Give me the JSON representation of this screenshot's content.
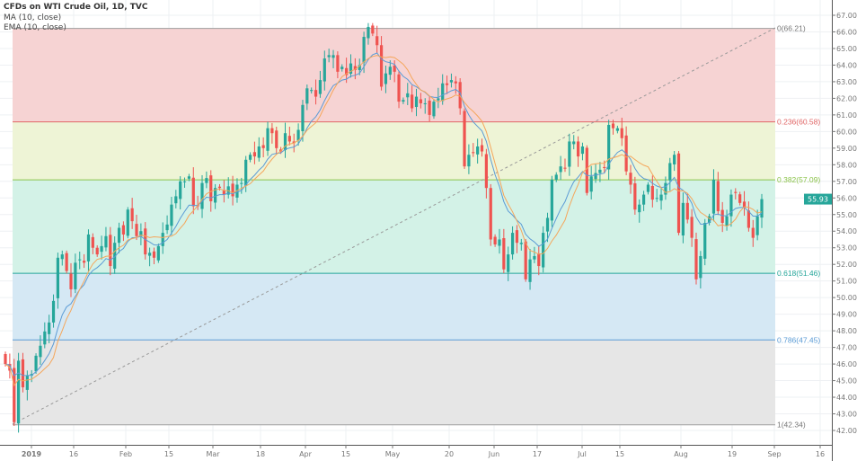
{
  "legend": {
    "title": "CFDs on WTI Crude Oil, 1D, TVC",
    "ma": "MA (10, close)",
    "ema": "EMA (10, close)"
  },
  "price_label": "55.93",
  "colors": {
    "up": "#26a69a",
    "down": "#ef5350",
    "ma": "#f5a65b",
    "ema": "#5b9bd5",
    "price_label_bg": "#26a69a"
  },
  "chart_data": {
    "type": "candlestick",
    "title": "CFDs on WTI Crude Oil, 1D, TVC",
    "ylim": [
      42,
      67
    ],
    "y_ticks": [
      "42.00",
      "43.00",
      "44.00",
      "45.00",
      "46.00",
      "47.00",
      "48.00",
      "49.00",
      "50.00",
      "51.00",
      "52.00",
      "53.00",
      "54.00",
      "55.00",
      "56.00",
      "57.00",
      "58.00",
      "59.00",
      "60.00",
      "61.00",
      "62.00",
      "63.00",
      "64.00",
      "65.00",
      "66.00",
      "67.00"
    ],
    "x_ticks": [
      "2019",
      "16",
      "Feb",
      "15",
      "Mar",
      "18",
      "Apr",
      "15",
      "May",
      "20",
      "Jun",
      "17",
      "Jul",
      "15",
      "Aug",
      "19",
      "Sep",
      "16"
    ],
    "indicators": [
      {
        "name": "MA",
        "period": 10,
        "source": "close"
      },
      {
        "name": "EMA",
        "period": 10,
        "source": "close"
      }
    ],
    "fib_levels": [
      {
        "ratio": 0,
        "price": 66.21,
        "label": "0(66.21)",
        "line": "#9e9e9e",
        "fill": "#f6d3d3"
      },
      {
        "ratio": 0.236,
        "price": 60.58,
        "label": "0.236(60.58)",
        "line": "#e06666",
        "fill": "#eef4d6"
      },
      {
        "ratio": 0.382,
        "price": 57.09,
        "label": "0.382(57.09)",
        "line": "#8bc34a",
        "fill": "#d3f2e7"
      },
      {
        "ratio": 0.618,
        "price": 51.46,
        "label": "0.618(51.46)",
        "line": "#26a69a",
        "fill": "#d5e8f4"
      },
      {
        "ratio": 0.786,
        "price": 47.45,
        "label": "0.786(47.45)",
        "line": "#5b9bd5",
        "fill": "#e6e6e6"
      },
      {
        "ratio": 1,
        "price": 42.34,
        "label": "1(42.34)",
        "line": "#9e9e9e",
        "fill": null
      }
    ],
    "closes": [
      46.0,
      45.6,
      42.5,
      46.2,
      44.6,
      45.3,
      45.4,
      46.5,
      47.1,
      47.96,
      48.5,
      49.8,
      52.4,
      52.6,
      51.6,
      50.5,
      52.1,
      52.3,
      52.1,
      53.8,
      53.0,
      52.6,
      53.1,
      53.7,
      51.9,
      53.3,
      54.2,
      53.8,
      55.3,
      54.6,
      53.7,
      54.0,
      52.6,
      52.7,
      52.4,
      53.1,
      53.9,
      54.4,
      55.6,
      56.1,
      57.0,
      57.0,
      57.3,
      55.5,
      55.5,
      56.9,
      57.2,
      55.8,
      56.6,
      56.6,
      56.2,
      56.7,
      56.1,
      56.8,
      56.9,
      58.3,
      58.6,
      58.5,
      59.1,
      59.0,
      60.2,
      59.9,
      59.0,
      58.8,
      59.9,
      59.4,
      59.3,
      60.1,
      61.6,
      62.6,
      62.5,
      62.1,
      63.1,
      64.4,
      64.6,
      64.6,
      63.6,
      63.9,
      63.4,
      64.1,
      63.7,
      64.0,
      65.7,
      66.3,
      65.9,
      65.2,
      62.7,
      63.5,
      63.9,
      63.6,
      61.8,
      61.9,
      62.3,
      61.4,
      62.1,
      61.7,
      61.7,
      61.0,
      61.8,
      62.0,
      62.9,
      62.8,
      63.1,
      62.9,
      61.4,
      57.9,
      58.6,
      58.7,
      59.1,
      58.8,
      56.6,
      53.5,
      53.2,
      53.5,
      51.7,
      52.6,
      53.9,
      53.3,
      53.3,
      51.1,
      52.3,
      52.5,
      51.9,
      53.9,
      54.8,
      57.1,
      57.4,
      57.9,
      57.8,
      59.4,
      59.4,
      58.5,
      59.1,
      56.3,
      57.3,
      57.5,
      57.7,
      57.8,
      60.4,
      60.2,
      60.2,
      59.6,
      57.6,
      56.8,
      55.3,
      55.6,
      56.2,
      56.8,
      55.9,
      56.0,
      56.2,
      56.9,
      58.1,
      58.6,
      53.9,
      55.7,
      54.7,
      53.6,
      51.1,
      52.5,
      54.5,
      54.9,
      57.1,
      55.2,
      54.5,
      54.9,
      56.2,
      56.3,
      55.7,
      55.4,
      54.2,
      53.6,
      54.9,
      55.93
    ]
  }
}
